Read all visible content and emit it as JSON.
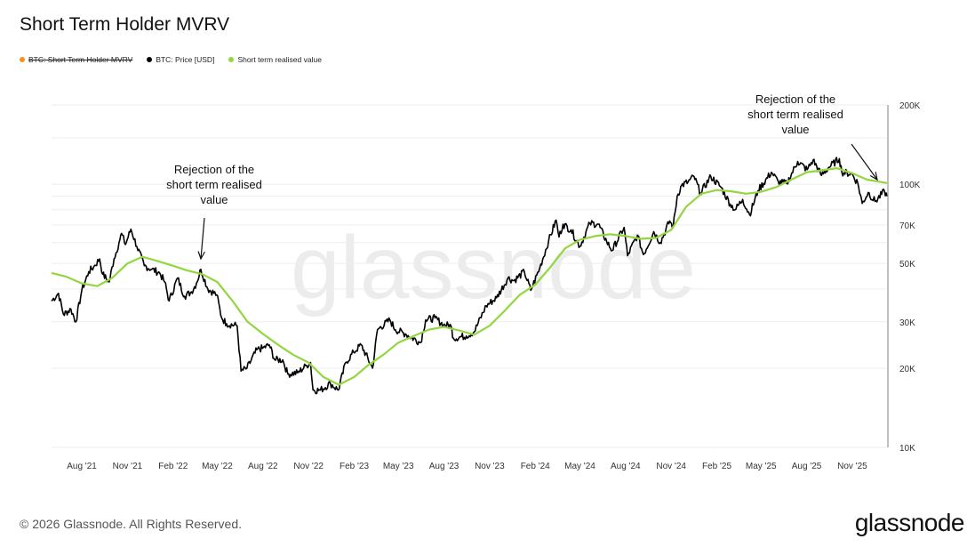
{
  "title": "Short Term Holder MVRV",
  "legend": [
    {
      "label": "BTC: Short Term Holder MVRV",
      "color": "#f7931a",
      "disabled": true
    },
    {
      "label": "BTC: Price [USD]",
      "color": "#000000",
      "disabled": false
    },
    {
      "label": "Short term realised value",
      "color": "#93d640",
      "disabled": false
    }
  ],
  "watermark": "glassnode",
  "footer": {
    "copyright": "© 2026 Glassnode. All Rights Reserved.",
    "logo": "glassnode"
  },
  "chart_data": {
    "type": "line",
    "title": "Short Term Holder MVRV",
    "yscale": "log",
    "ylim": [
      10000,
      200000
    ],
    "xlim": [
      "2021-06-01",
      "2026-01-10"
    ],
    "yticks": [
      {
        "value": 200000,
        "label": "200K"
      },
      {
        "value": 100000,
        "label": "100K"
      },
      {
        "value": 70000,
        "label": "70K"
      },
      {
        "value": 50000,
        "label": "50K"
      },
      {
        "value": 30000,
        "label": "30K"
      },
      {
        "value": 20000,
        "label": "20K"
      },
      {
        "value": 10000,
        "label": "10K"
      }
    ],
    "xticks": [
      {
        "date": "2021-08-01",
        "label": "Aug '21"
      },
      {
        "date": "2021-11-01",
        "label": "Nov '21"
      },
      {
        "date": "2022-02-01",
        "label": "Feb '22"
      },
      {
        "date": "2022-05-01",
        "label": "May '22"
      },
      {
        "date": "2022-08-01",
        "label": "Aug '22"
      },
      {
        "date": "2022-11-01",
        "label": "Nov '22"
      },
      {
        "date": "2023-02-01",
        "label": "Feb '23"
      },
      {
        "date": "2023-05-01",
        "label": "May '23"
      },
      {
        "date": "2023-08-01",
        "label": "Aug '23"
      },
      {
        "date": "2023-11-01",
        "label": "Nov '23"
      },
      {
        "date": "2024-02-01",
        "label": "Feb '24"
      },
      {
        "date": "2024-05-01",
        "label": "May '24"
      },
      {
        "date": "2024-08-01",
        "label": "Aug '24"
      },
      {
        "date": "2024-11-01",
        "label": "Nov '24"
      },
      {
        "date": "2025-02-01",
        "label": "Feb '25"
      },
      {
        "date": "2025-05-01",
        "label": "May '25"
      },
      {
        "date": "2025-08-01",
        "label": "Aug '25"
      },
      {
        "date": "2025-11-01",
        "label": "Nov '25"
      }
    ],
    "series": [
      {
        "name": "BTC: Price [USD]",
        "color": "#000000",
        "points": [
          [
            "2021-06-01",
            36000
          ],
          [
            "2021-06-15",
            38500
          ],
          [
            "2021-06-25",
            32000
          ],
          [
            "2021-07-10",
            33500
          ],
          [
            "2021-07-20",
            30000
          ],
          [
            "2021-08-01",
            39500
          ],
          [
            "2021-08-15",
            46500
          ],
          [
            "2021-08-25",
            48500
          ],
          [
            "2021-09-06",
            52000
          ],
          [
            "2021-09-12",
            45500
          ],
          [
            "2021-09-25",
            42500
          ],
          [
            "2021-10-05",
            52000
          ],
          [
            "2021-10-15",
            60000
          ],
          [
            "2021-10-20",
            65000
          ],
          [
            "2021-10-28",
            59000
          ],
          [
            "2021-11-08",
            67500
          ],
          [
            "2021-11-20",
            58000
          ],
          [
            "2021-12-05",
            49000
          ],
          [
            "2021-12-20",
            47500
          ],
          [
            "2022-01-05",
            46000
          ],
          [
            "2022-01-15",
            42500
          ],
          [
            "2022-01-24",
            36000
          ],
          [
            "2022-02-10",
            44000
          ],
          [
            "2022-02-24",
            37500
          ],
          [
            "2022-03-10",
            39000
          ],
          [
            "2022-03-20",
            42000
          ],
          [
            "2022-03-29",
            47500
          ],
          [
            "2022-04-12",
            40000
          ],
          [
            "2022-04-30",
            38000
          ],
          [
            "2022-05-10",
            31000
          ],
          [
            "2022-05-20",
            29500
          ],
          [
            "2022-06-10",
            29000
          ],
          [
            "2022-06-18",
            19500
          ],
          [
            "2022-06-30",
            20000
          ],
          [
            "2022-07-20",
            23500
          ],
          [
            "2022-07-31",
            23800
          ],
          [
            "2022-08-14",
            24500
          ],
          [
            "2022-08-25",
            21500
          ],
          [
            "2022-09-10",
            21500
          ],
          [
            "2022-09-20",
            19000
          ],
          [
            "2022-10-10",
            19200
          ],
          [
            "2022-10-28",
            20500
          ],
          [
            "2022-11-05",
            21000
          ],
          [
            "2022-11-10",
            16500
          ],
          [
            "2022-11-25",
            16500
          ],
          [
            "2022-12-15",
            17500
          ],
          [
            "2022-12-31",
            16500
          ],
          [
            "2023-01-15",
            21000
          ],
          [
            "2023-01-31",
            23000
          ],
          [
            "2023-02-15",
            24500
          ],
          [
            "2023-03-10",
            20000
          ],
          [
            "2023-03-20",
            28000
          ],
          [
            "2023-04-14",
            30500
          ],
          [
            "2023-04-25",
            28000
          ],
          [
            "2023-05-15",
            27000
          ],
          [
            "2023-06-15",
            25000
          ],
          [
            "2023-06-25",
            30500
          ],
          [
            "2023-07-14",
            31000
          ],
          [
            "2023-07-31",
            29200
          ],
          [
            "2023-08-15",
            29000
          ],
          [
            "2023-08-20",
            26000
          ],
          [
            "2023-09-15",
            26500
          ],
          [
            "2023-10-01",
            27500
          ],
          [
            "2023-10-25",
            34500
          ],
          [
            "2023-11-15",
            37000
          ],
          [
            "2023-12-08",
            44000
          ],
          [
            "2023-12-20",
            43000
          ],
          [
            "2024-01-10",
            46500
          ],
          [
            "2024-01-23",
            39500
          ],
          [
            "2024-02-10",
            48000
          ],
          [
            "2024-02-28",
            61000
          ],
          [
            "2024-03-14",
            73000
          ],
          [
            "2024-03-20",
            63000
          ],
          [
            "2024-03-28",
            70500
          ],
          [
            "2024-04-13",
            67000
          ],
          [
            "2024-05-01",
            58000
          ],
          [
            "2024-05-21",
            71000
          ],
          [
            "2024-06-07",
            70500
          ],
          [
            "2024-06-24",
            60500
          ],
          [
            "2024-07-05",
            56000
          ],
          [
            "2024-07-29",
            68500
          ],
          [
            "2024-08-05",
            53500
          ],
          [
            "2024-08-25",
            64000
          ],
          [
            "2024-09-06",
            54000
          ],
          [
            "2024-09-27",
            66000
          ],
          [
            "2024-10-10",
            60000
          ],
          [
            "2024-10-29",
            72500
          ],
          [
            "2024-11-05",
            68500
          ],
          [
            "2024-11-13",
            90000
          ],
          [
            "2024-11-22",
            99000
          ],
          [
            "2024-12-05",
            102000
          ],
          [
            "2024-12-17",
            107000
          ],
          [
            "2024-12-30",
            92500
          ],
          [
            "2025-01-20",
            107000
          ],
          [
            "2025-02-10",
            97000
          ],
          [
            "2025-02-28",
            84000
          ],
          [
            "2025-03-10",
            80000
          ],
          [
            "2025-03-25",
            87500
          ],
          [
            "2025-04-08",
            76500
          ],
          [
            "2025-04-25",
            94500
          ],
          [
            "2025-05-22",
            111000
          ],
          [
            "2025-06-05",
            102000
          ],
          [
            "2025-06-22",
            100500
          ],
          [
            "2025-07-14",
            122000
          ],
          [
            "2025-08-02",
            113500
          ],
          [
            "2025-08-14",
            123500
          ],
          [
            "2025-08-31",
            108000
          ],
          [
            "2025-09-15",
            116000
          ],
          [
            "2025-10-06",
            125000
          ],
          [
            "2025-10-11",
            111000
          ],
          [
            "2025-10-31",
            109500
          ],
          [
            "2025-11-12",
            101000
          ],
          [
            "2025-11-21",
            84500
          ],
          [
            "2025-12-03",
            93000
          ],
          [
            "2025-12-17",
            86000
          ],
          [
            "2026-01-05",
            94000
          ],
          [
            "2026-01-10",
            90000
          ]
        ]
      },
      {
        "name": "Short term realised value",
        "color": "#93d640",
        "points": [
          [
            "2021-06-01",
            46000
          ],
          [
            "2021-07-01",
            44500
          ],
          [
            "2021-08-01",
            42000
          ],
          [
            "2021-09-01",
            41000
          ],
          [
            "2021-10-01",
            44000
          ],
          [
            "2021-11-01",
            50000
          ],
          [
            "2021-12-01",
            53000
          ],
          [
            "2022-01-01",
            51000
          ],
          [
            "2022-02-01",
            49000
          ],
          [
            "2022-03-01",
            47000
          ],
          [
            "2022-04-01",
            45500
          ],
          [
            "2022-05-01",
            42500
          ],
          [
            "2022-06-01",
            36000
          ],
          [
            "2022-07-01",
            30000
          ],
          [
            "2022-08-01",
            27000
          ],
          [
            "2022-09-01",
            24500
          ],
          [
            "2022-10-01",
            22500
          ],
          [
            "2022-11-01",
            21000
          ],
          [
            "2022-12-01",
            18500
          ],
          [
            "2023-01-01",
            17300
          ],
          [
            "2023-02-01",
            18500
          ],
          [
            "2023-03-01",
            20500
          ],
          [
            "2023-04-01",
            22500
          ],
          [
            "2023-05-01",
            25000
          ],
          [
            "2023-06-01",
            26500
          ],
          [
            "2023-07-01",
            28000
          ],
          [
            "2023-08-01",
            28700
          ],
          [
            "2023-09-01",
            27800
          ],
          [
            "2023-10-01",
            26800
          ],
          [
            "2023-11-01",
            29000
          ],
          [
            "2023-12-01",
            33000
          ],
          [
            "2024-01-01",
            38000
          ],
          [
            "2024-02-01",
            41500
          ],
          [
            "2024-03-01",
            48000
          ],
          [
            "2024-04-01",
            57000
          ],
          [
            "2024-05-01",
            61500
          ],
          [
            "2024-06-01",
            63500
          ],
          [
            "2024-07-01",
            64500
          ],
          [
            "2024-08-01",
            63500
          ],
          [
            "2024-09-01",
            62000
          ],
          [
            "2024-10-01",
            62500
          ],
          [
            "2024-11-01",
            67000
          ],
          [
            "2024-12-01",
            82000
          ],
          [
            "2025-01-01",
            92000
          ],
          [
            "2025-02-01",
            95000
          ],
          [
            "2025-03-01",
            94000
          ],
          [
            "2025-04-01",
            92000
          ],
          [
            "2025-05-01",
            93500
          ],
          [
            "2025-06-01",
            97500
          ],
          [
            "2025-07-01",
            104000
          ],
          [
            "2025-08-01",
            111000
          ],
          [
            "2025-09-01",
            113000
          ],
          [
            "2025-10-01",
            115000
          ],
          [
            "2025-11-01",
            110000
          ],
          [
            "2025-12-01",
            104000
          ],
          [
            "2026-01-10",
            101000
          ]
        ]
      }
    ],
    "annotations": [
      {
        "text": [
          "Rejection of the",
          "short term realised",
          "value"
        ],
        "target_date": "2022-03-29",
        "target_value": 47500
      },
      {
        "text": [
          "Rejection of the",
          "short term realised",
          "value"
        ],
        "target_date": "2026-01-06",
        "target_value": 98000
      }
    ]
  }
}
